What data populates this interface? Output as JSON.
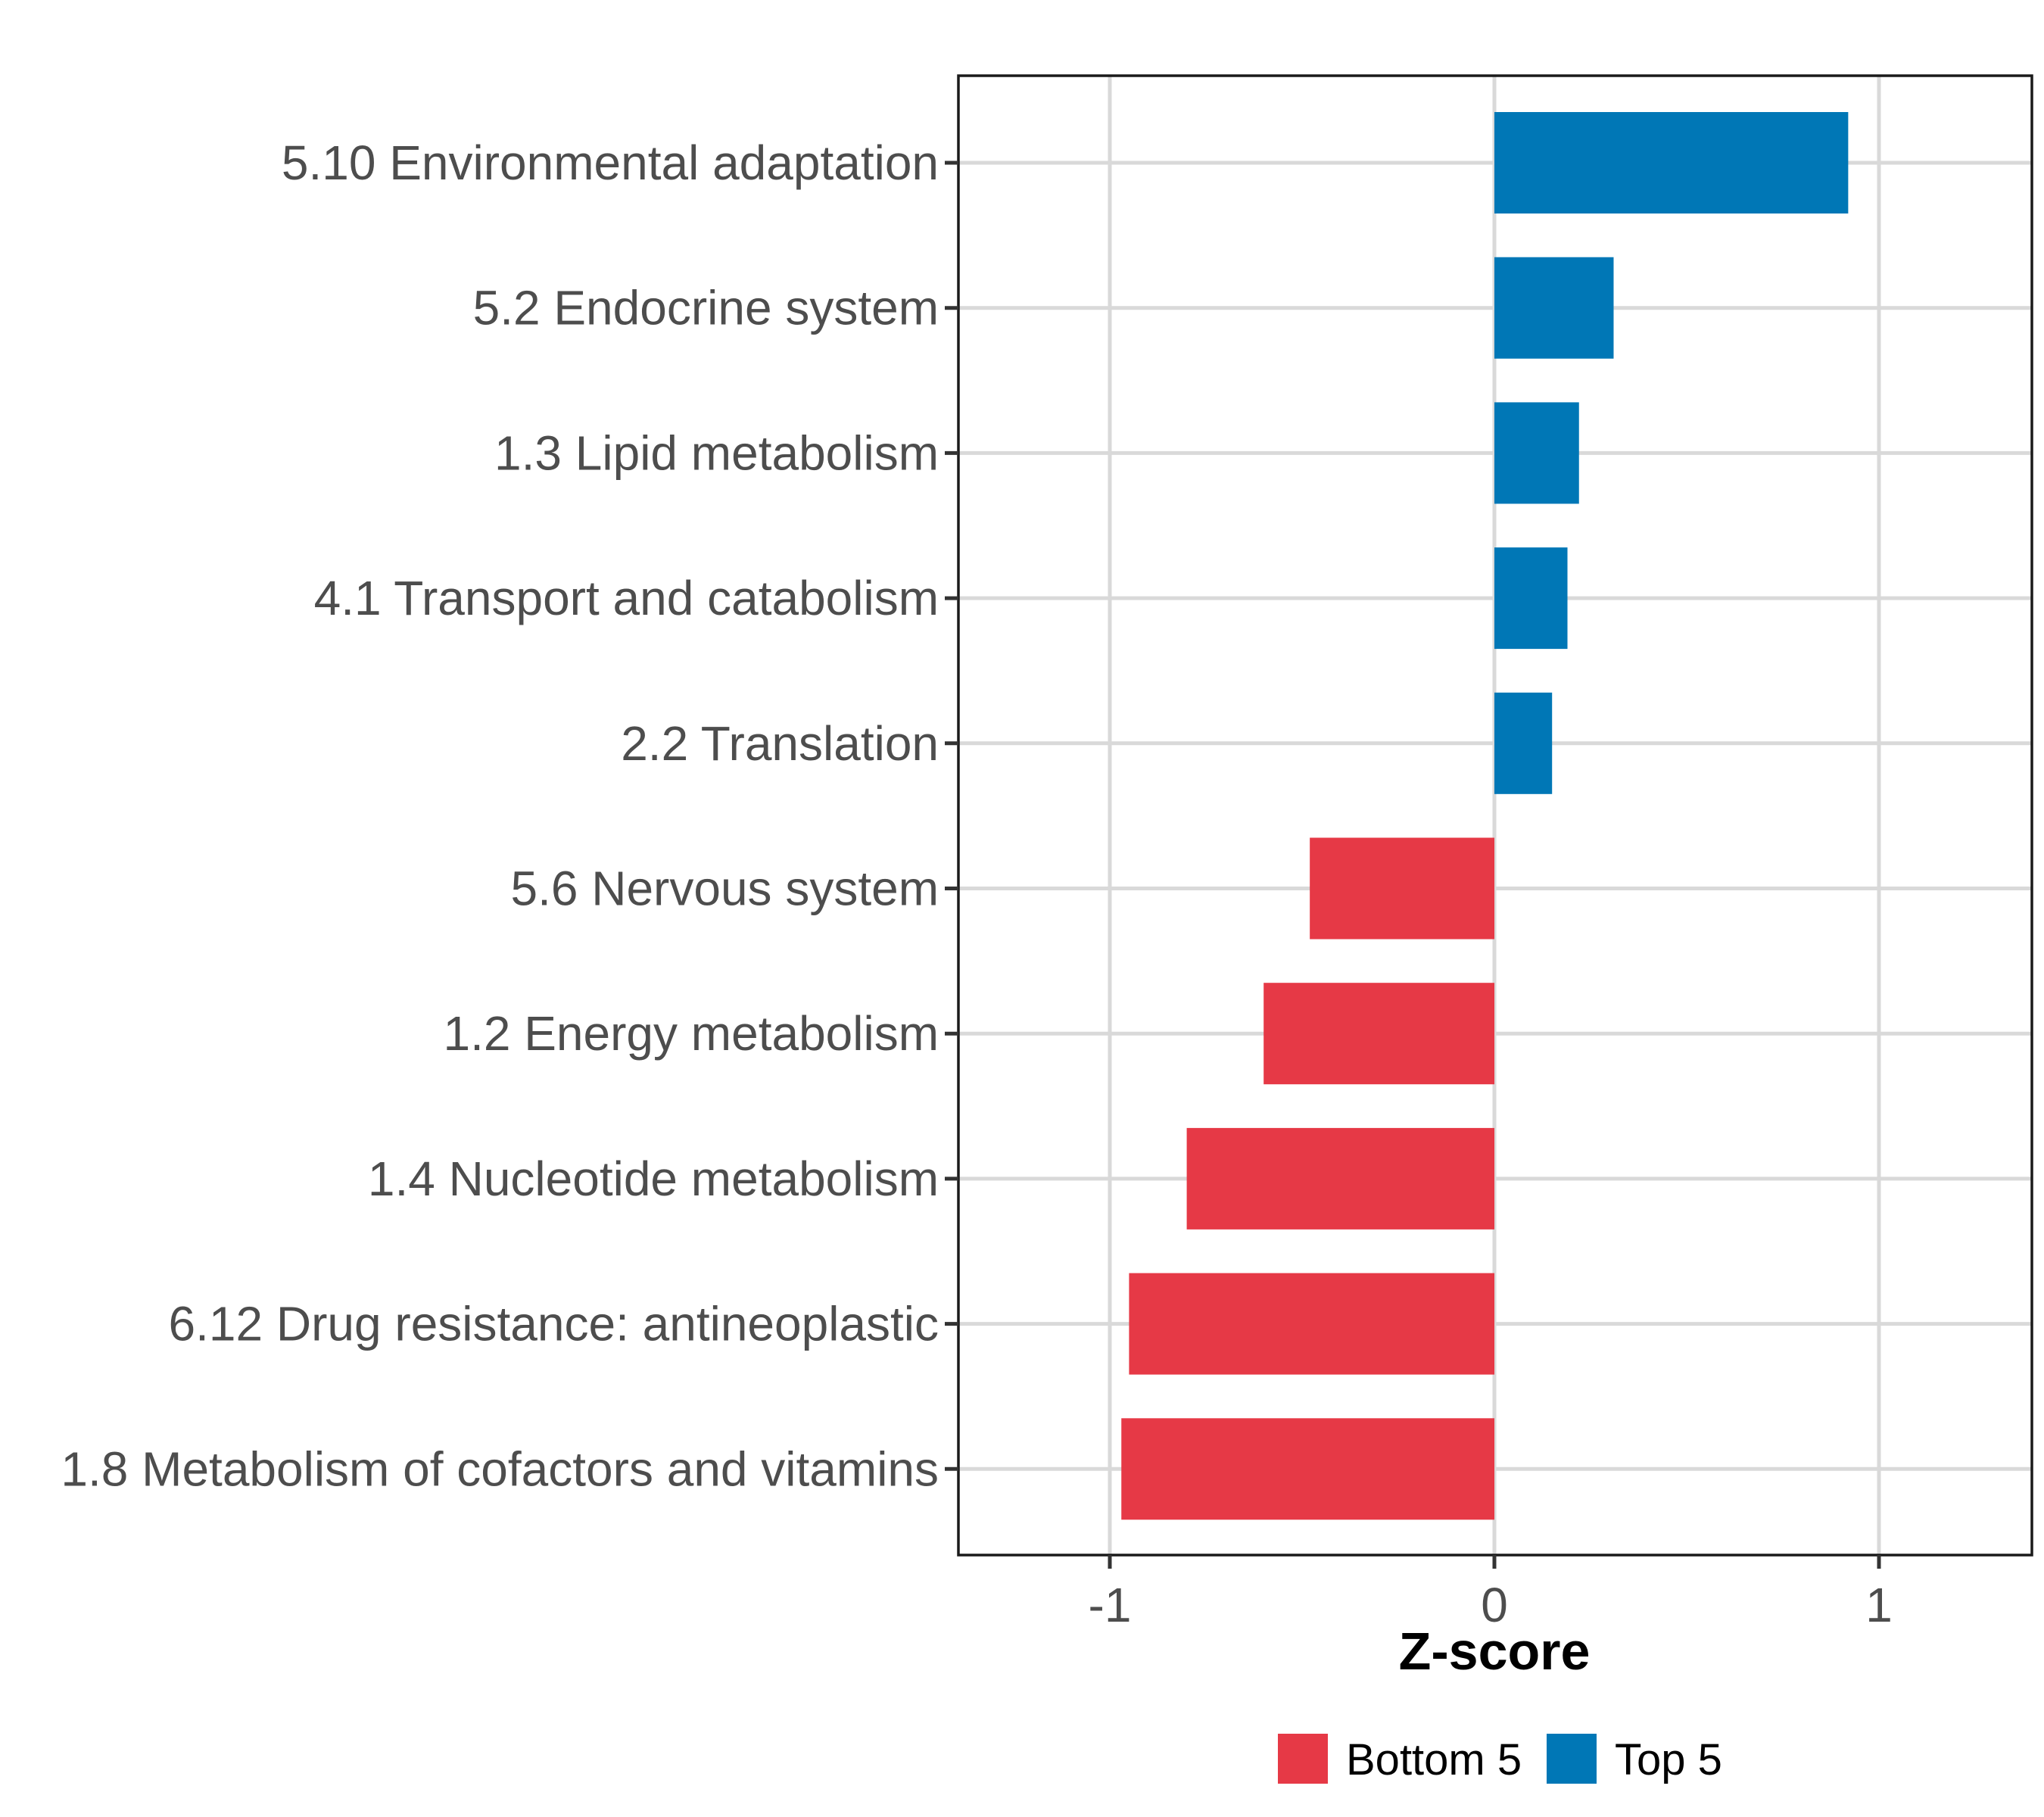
{
  "chart_data": {
    "type": "bar",
    "orientation": "horizontal",
    "title": "",
    "xlabel": "Z-score",
    "ylabel": "",
    "xlim": [
      -1.4,
      1.4
    ],
    "x_ticks": [
      -1,
      0,
      1
    ],
    "x_tick_labels": [
      "-1",
      "0",
      "1"
    ],
    "grid": true,
    "legend_position": "bottom",
    "categories": [
      "5.10 Environmental adaptation",
      "5.2 Endocrine system",
      "1.3 Lipid metabolism",
      "4.1 Transport and catabolism",
      "2.2 Translation",
      "5.6 Nervous system",
      "1.2 Energy metabolism",
      "1.4 Nucleotide metabolism",
      "6.12 Drug resistance: antineoplastic",
      "1.8 Metabolism of cofactors and vitamins"
    ],
    "values": [
      0.92,
      0.31,
      0.22,
      0.19,
      0.15,
      -0.48,
      -0.6,
      -0.8,
      -0.95,
      -0.97
    ],
    "groups": [
      "Top 5",
      "Top 5",
      "Top 5",
      "Top 5",
      "Top 5",
      "Bottom 5",
      "Bottom 5",
      "Bottom 5",
      "Bottom 5",
      "Bottom 5"
    ],
    "legend": [
      {
        "name": "Bottom 5",
        "color": "#e63946"
      },
      {
        "name": "Top 5",
        "color": "#0077b6"
      }
    ]
  }
}
